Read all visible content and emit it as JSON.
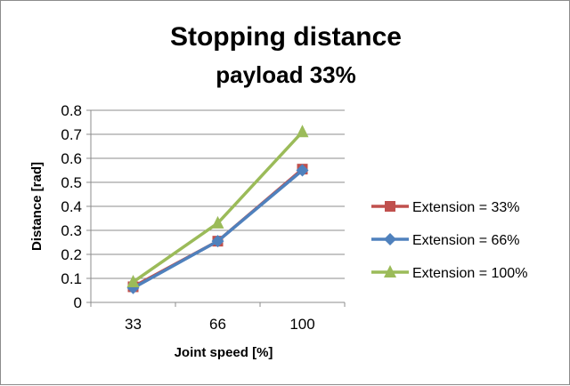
{
  "chart_data": {
    "type": "line",
    "title": "Stopping distance",
    "subtitle": "payload 33%",
    "xlabel": "Joint speed [%]",
    "ylabel": "Distance [rad]",
    "categories": [
      "33",
      "66",
      "100"
    ],
    "ylim": [
      0,
      0.8
    ],
    "y_ticks": [
      "0",
      "0.1",
      "0.2",
      "0.3",
      "0.4",
      "0.5",
      "0.6",
      "0.7",
      "0.8"
    ],
    "grid": "horizontal",
    "legend_position": "right",
    "series": [
      {
        "name": "Extension = 33%",
        "values": [
          0.065,
          0.255,
          0.555
        ],
        "color": "#C0504D",
        "marker": "square"
      },
      {
        "name": "Extension = 66%",
        "values": [
          0.06,
          0.255,
          0.55
        ],
        "color": "#4F81BD",
        "marker": "diamond"
      },
      {
        "name": "Extension = 100%",
        "values": [
          0.085,
          0.33,
          0.71
        ],
        "color": "#9BBB59",
        "marker": "triangle"
      }
    ]
  }
}
